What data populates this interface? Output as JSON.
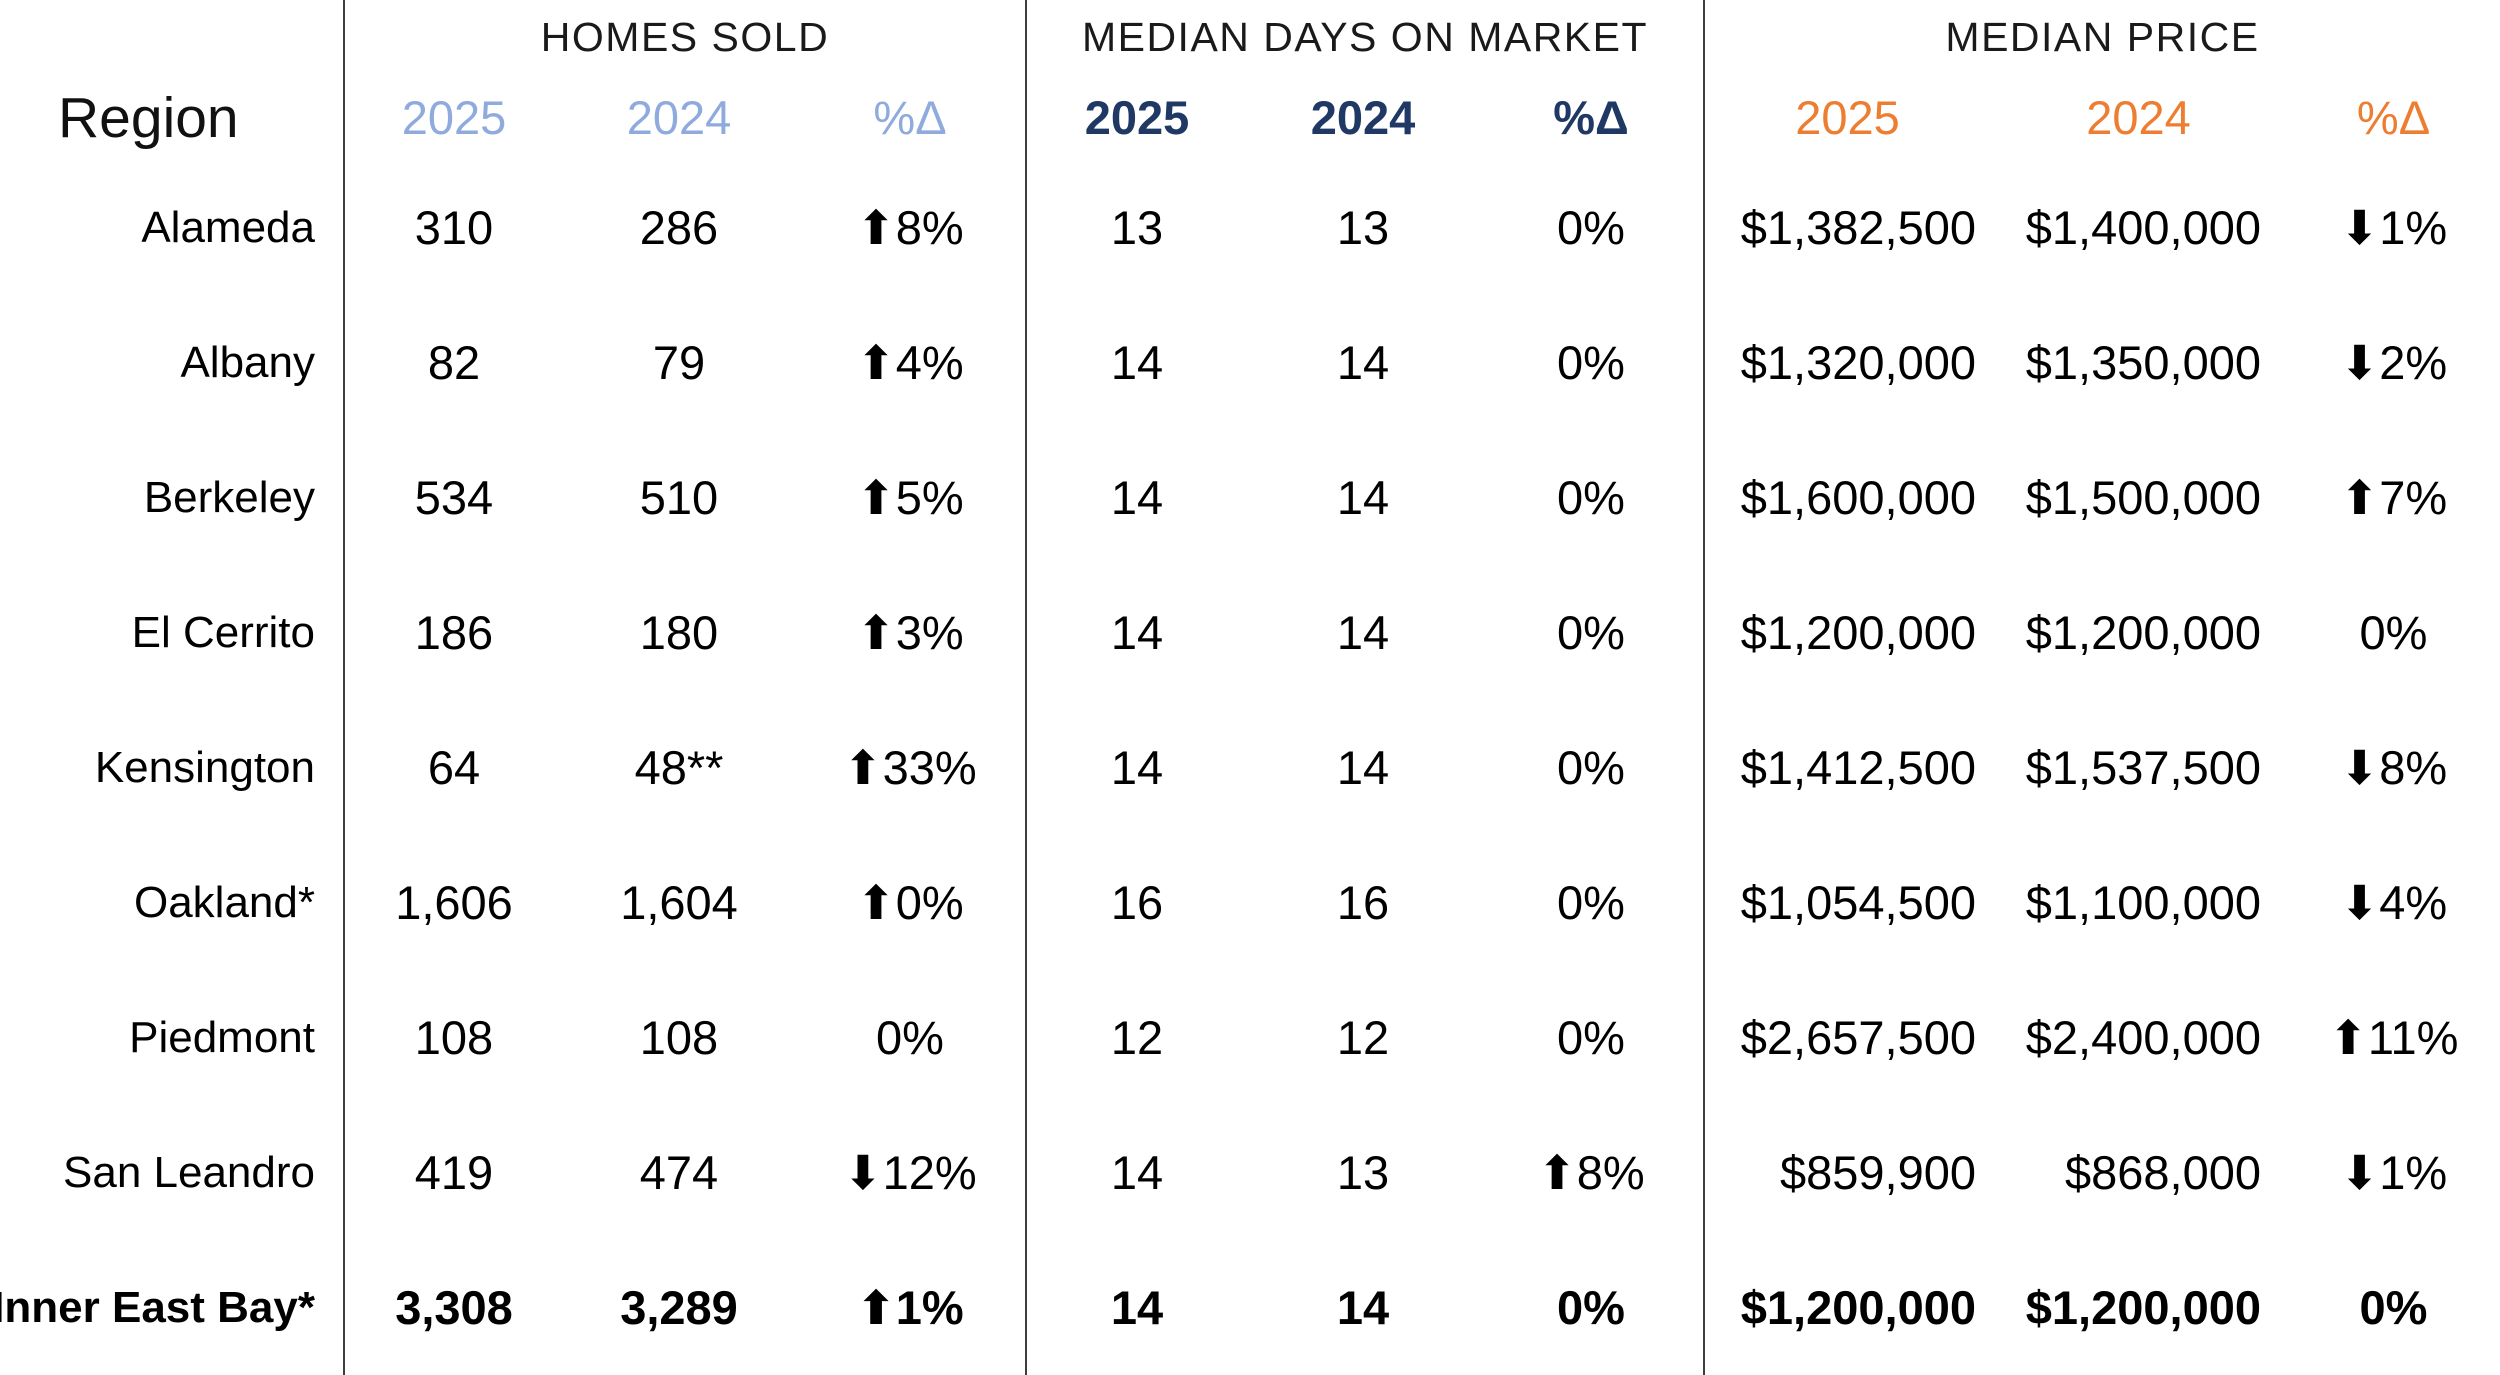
{
  "header": {
    "region_label": "Region",
    "sections": [
      {
        "title": "HOMES SOLD",
        "col_2025": "2025",
        "col_2024": "2024",
        "col_change": "%Δ"
      },
      {
        "title": "MEDIAN DAYS ON MARKET",
        "col_2025": "2025",
        "col_2024": "2024",
        "col_change": "%Δ"
      },
      {
        "title": "MEDIAN PRICE",
        "col_2025": "2025",
        "col_2024": "2024",
        "col_change": "%Δ"
      }
    ]
  },
  "colors": {
    "homes_sold_header": "#8FAADC",
    "days_on_market_header": "#1F3864",
    "median_price_header": "#ED7D31",
    "divider": "#3d3d3d",
    "text": "#000000"
  },
  "rows": [
    {
      "region": "Alameda",
      "hs_2025": "310",
      "hs_2024": "286",
      "hs_change": "⬆8%",
      "dom_2025": "13",
      "dom_2024": "13",
      "dom_change": "0%",
      "mp_2025": "$1,382,500",
      "mp_2024": "$1,400,000",
      "mp_change": "⬇1%",
      "is_total": false
    },
    {
      "region": "Albany",
      "hs_2025": "82",
      "hs_2024": "79",
      "hs_change": "⬆4%",
      "dom_2025": "14",
      "dom_2024": "14",
      "dom_change": "0%",
      "mp_2025": "$1,320,000",
      "mp_2024": "$1,350,000",
      "mp_change": "⬇2%",
      "is_total": false
    },
    {
      "region": "Berkeley",
      "hs_2025": "534",
      "hs_2024": "510",
      "hs_change": "⬆5%",
      "dom_2025": "14",
      "dom_2024": "14",
      "dom_change": "0%",
      "mp_2025": "$1,600,000",
      "mp_2024": "$1,500,000",
      "mp_change": "⬆7%",
      "is_total": false
    },
    {
      "region": "El Cerrito",
      "hs_2025": "186",
      "hs_2024": "180",
      "hs_change": "⬆3%",
      "dom_2025": "14",
      "dom_2024": "14",
      "dom_change": "0%",
      "mp_2025": "$1,200,000",
      "mp_2024": "$1,200,000",
      "mp_change": "0%",
      "is_total": false
    },
    {
      "region": "Kensington",
      "hs_2025": "64",
      "hs_2024": "48**",
      "hs_change": "⬆33%",
      "dom_2025": "14",
      "dom_2024": "14",
      "dom_change": "0%",
      "mp_2025": "$1,412,500",
      "mp_2024": "$1,537,500",
      "mp_change": "⬇8%",
      "is_total": false
    },
    {
      "region": "Oakland*",
      "hs_2025": "1,606",
      "hs_2024": "1,604",
      "hs_change": "⬆0%",
      "dom_2025": "16",
      "dom_2024": "16",
      "dom_change": "0%",
      "mp_2025": "$1,054,500",
      "mp_2024": "$1,100,000",
      "mp_change": "⬇4%",
      "is_total": false
    },
    {
      "region": "Piedmont",
      "hs_2025": "108",
      "hs_2024": "108",
      "hs_change": "0%",
      "dom_2025": "12",
      "dom_2024": "12",
      "dom_change": "0%",
      "mp_2025": "$2,657,500",
      "mp_2024": "$2,400,000",
      "mp_change": "⬆11%",
      "is_total": false
    },
    {
      "region": "San Leandro",
      "hs_2025": "419",
      "hs_2024": "474",
      "hs_change": "⬇12%",
      "dom_2025": "14",
      "dom_2024": "13",
      "dom_change": "⬆8%",
      "mp_2025": "$859,900",
      "mp_2024": "$868,000",
      "mp_change": "⬇1%",
      "is_total": false
    },
    {
      "region": "Inner East Bay*",
      "hs_2025": "3,308",
      "hs_2024": "3,289",
      "hs_change": "⬆1%",
      "dom_2025": "14",
      "dom_2024": "14",
      "dom_change": "0%",
      "mp_2025": "$1,200,000",
      "mp_2024": "$1,200,000",
      "mp_change": "0%",
      "is_total": true
    }
  ],
  "chart_data": {
    "type": "table",
    "title": "",
    "column_groups": [
      "HOMES SOLD",
      "MEDIAN DAYS ON MARKET",
      "MEDIAN PRICE"
    ],
    "columns": [
      "Region",
      "Homes Sold 2025",
      "Homes Sold 2024",
      "Homes Sold %Δ",
      "Median Days on Market 2025",
      "Median Days on Market 2024",
      "Median Days on Market %Δ",
      "Median Price 2025",
      "Median Price 2024",
      "Median Price %Δ"
    ],
    "rows": [
      [
        "Alameda",
        310,
        286,
        "+8%",
        13,
        13,
        "0%",
        1382500,
        1400000,
        "-1%"
      ],
      [
        "Albany",
        82,
        79,
        "+4%",
        14,
        14,
        "0%",
        1320000,
        1350000,
        "-2%"
      ],
      [
        "Berkeley",
        534,
        510,
        "+5%",
        14,
        14,
        "0%",
        1600000,
        1500000,
        "+7%"
      ],
      [
        "El Cerrito",
        186,
        180,
        "+3%",
        14,
        14,
        "0%",
        1200000,
        1200000,
        "0%"
      ],
      [
        "Kensington",
        64,
        48,
        "+33%",
        14,
        14,
        "0%",
        1412500,
        1537500,
        "-8%"
      ],
      [
        "Oakland*",
        1606,
        1604,
        "+0%",
        16,
        16,
        "0%",
        1054500,
        1100000,
        "-4%"
      ],
      [
        "Piedmont",
        108,
        108,
        "0%",
        12,
        12,
        "0%",
        2657500,
        2400000,
        "+11%"
      ],
      [
        "San Leandro",
        419,
        474,
        "-12%",
        14,
        13,
        "+8%",
        859900,
        868000,
        "-1%"
      ],
      [
        "Inner East Bay*",
        3308,
        3289,
        "+1%",
        14,
        14,
        "0%",
        1200000,
        1200000,
        "0%"
      ]
    ]
  }
}
